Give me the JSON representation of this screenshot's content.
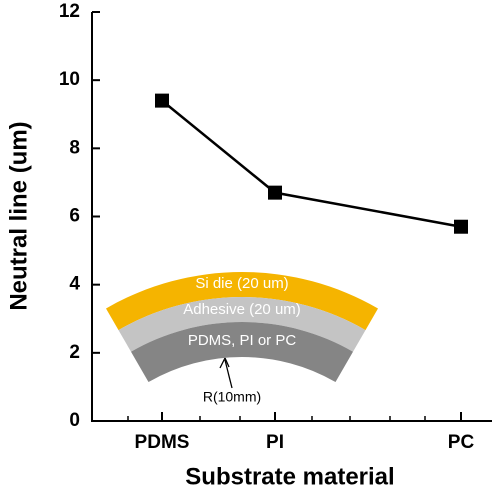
{
  "chart_data": {
    "type": "line",
    "x_label": "Substrate material",
    "y_label": "Neutral line (um)",
    "categories": [
      "PDMS",
      "PI",
      "PC"
    ],
    "series": [
      {
        "name": null,
        "color": "#000000",
        "values": [
          9.4,
          6.7,
          5.7
        ]
      }
    ],
    "ylim": [
      0,
      12
    ],
    "yticks": [
      0,
      2,
      4,
      6,
      8,
      10,
      12
    ],
    "annotations": [
      "Si die (20 um)",
      "Adhesive (20 um)",
      "PDMS, PI or PC",
      "R(10mm)"
    ]
  }
}
